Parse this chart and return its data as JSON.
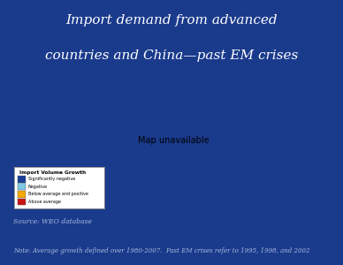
{
  "title_line1": "Import demand from advanced",
  "title_line2": "countries and China—past EM crises",
  "source_text": "Source: WEO database",
  "note_text": "Note: Average growth defined over 1980-2007.  Past EM crises refer to 1995, 1998, and 2002",
  "legend_title": "Import Volume Growth",
  "legend_items": [
    {
      "label": "Significantly negative",
      "color": "#1C3E99"
    },
    {
      "label": "Negative",
      "color": "#7EC8E3"
    },
    {
      "label": "Below average and positive",
      "color": "#F5A800"
    },
    {
      "label": "Above average",
      "color": "#CC1111"
    }
  ],
  "background_color": "#1A3A8C",
  "map_bg_color": "#FFFFFF",
  "map_land_color": "#D0D0D0",
  "title_color": "#FFFFFF",
  "source_color": "#AABBDD",
  "note_color": "#AABBDD",
  "country_color_map": {
    "United States of America": "#CC1111",
    "Canada": "#F5A800",
    "Mexico": "#CC1111",
    "United Kingdom": "#CC1111",
    "France": "#CC1111",
    "Germany": "#CC1111",
    "Italy": "#CC1111",
    "Spain": "#CC1111",
    "Portugal": "#CC1111",
    "China": "#CC1111",
    "Japan": "#F5A800",
    "South Korea": "#CC1111",
    "Australia": "#CC1111",
    "New Zealand": "#CC1111",
    "Russia": "#CC1111",
    "Brazil": "#CC1111",
    "Indonesia": "#CC1111",
    "Sweden": "#CC1111",
    "Norway": "#CC1111",
    "Denmark": "#CC1111",
    "Finland": "#CC1111",
    "Netherlands": "#CC1111",
    "Belgium": "#CC1111",
    "Switzerland": "#CC1111",
    "Austria": "#CC1111",
    "Greece": "#CC1111",
    "Ireland": "#CC1111"
  },
  "map_extent": [
    -180,
    180,
    -58,
    85
  ]
}
